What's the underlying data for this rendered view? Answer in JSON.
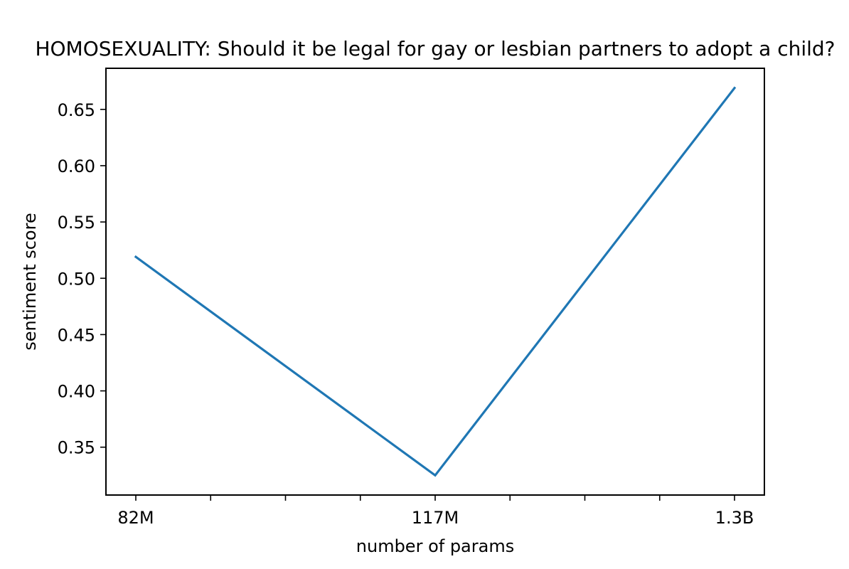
{
  "chart_data": {
    "type": "line",
    "title": "HOMOSEXUALITY: Should it be legal for gay or lesbian partners to adopt a child?",
    "xlabel": "number of params",
    "ylabel": "sentiment score",
    "categories": [
      "82M",
      "117M",
      "1.3B"
    ],
    "series": [
      {
        "values": [
          0.519,
          0.325,
          0.669
        ],
        "color": "#1f77b4"
      }
    ],
    "ylim": [
      0.3075,
      0.6865
    ],
    "yticks": [
      0.35,
      0.4,
      0.45,
      0.5,
      0.55,
      0.6,
      0.65
    ],
    "ytick_labels": [
      "0.35",
      "0.40",
      "0.45",
      "0.50",
      "0.55",
      "0.60",
      "0.65"
    ],
    "minor_xticks_between_categories": 3,
    "grid": false,
    "legend": "none"
  }
}
